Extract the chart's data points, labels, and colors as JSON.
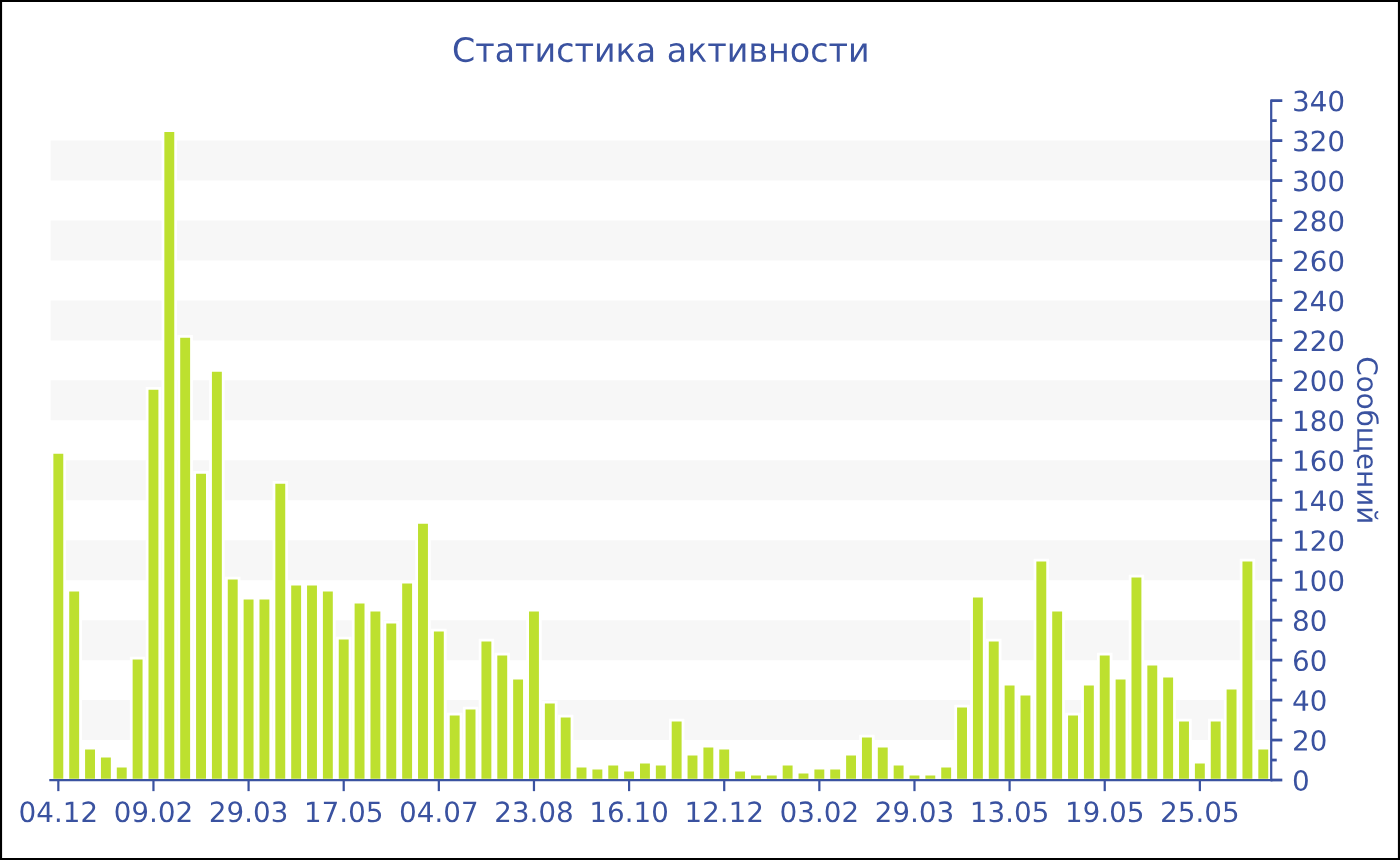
{
  "chart_data": {
    "type": "bar",
    "title": "Статистика активности",
    "ylabel": "Сообщений",
    "categories": [
      "04.12",
      null,
      null,
      null,
      null,
      null,
      "09.02",
      null,
      null,
      null,
      null,
      null,
      "29.03",
      null,
      null,
      null,
      null,
      null,
      "17.05",
      null,
      null,
      null,
      null,
      null,
      "04.07",
      null,
      null,
      null,
      null,
      null,
      "23.08",
      null,
      null,
      null,
      null,
      null,
      "16.10",
      null,
      null,
      null,
      null,
      null,
      "12.12",
      null,
      null,
      null,
      null,
      null,
      "03.02",
      null,
      null,
      null,
      null,
      null,
      "29.03",
      null,
      null,
      null,
      null,
      null,
      "13.05",
      null,
      null,
      null,
      null,
      null,
      "19.05",
      null,
      null,
      null,
      null,
      null,
      "25.05",
      null,
      null,
      null,
      null
    ],
    "values": [
      164,
      95,
      16,
      12,
      7,
      61,
      196,
      325,
      222,
      154,
      205,
      101,
      91,
      91,
      149,
      98,
      98,
      95,
      71,
      89,
      85,
      79,
      99,
      129,
      75,
      33,
      36,
      70,
      63,
      51,
      85,
      39,
      32,
      7,
      6,
      8,
      5,
      9,
      8,
      30,
      13,
      17,
      16,
      5,
      3,
      3,
      8,
      4,
      6,
      6,
      13,
      22,
      17,
      8,
      3,
      3,
      7,
      37,
      92,
      70,
      48,
      43,
      110,
      85,
      33,
      48,
      63,
      51,
      102,
      58,
      52,
      30,
      9,
      30,
      46,
      110,
      16
    ],
    "color": "#bde02f",
    "ylim": [
      0,
      340
    ],
    "yticks": [
      0,
      20,
      40,
      60,
      80,
      100,
      120,
      140,
      160,
      180,
      200,
      220,
      240,
      260,
      280,
      300,
      320,
      340
    ],
    "bands": [
      {
        "axis": "y",
        "from": 20,
        "to": 40,
        "color": "#f7f7f7"
      },
      {
        "axis": "y",
        "from": 60,
        "to": 80,
        "color": "#f7f7f7"
      },
      {
        "axis": "y",
        "from": 100,
        "to": 120,
        "color": "#f7f7f7"
      },
      {
        "axis": "y",
        "from": 140,
        "to": 160,
        "color": "#f7f7f7"
      },
      {
        "axis": "y",
        "from": 180,
        "to": 200,
        "color": "#f7f7f7"
      },
      {
        "axis": "y",
        "from": 220,
        "to": 240,
        "color": "#f7f7f7"
      },
      {
        "axis": "y",
        "from": 260,
        "to": 280,
        "color": "#f7f7f7"
      },
      {
        "axis": "y",
        "from": 300,
        "to": 320,
        "color": "#f7f7f7"
      }
    ]
  }
}
